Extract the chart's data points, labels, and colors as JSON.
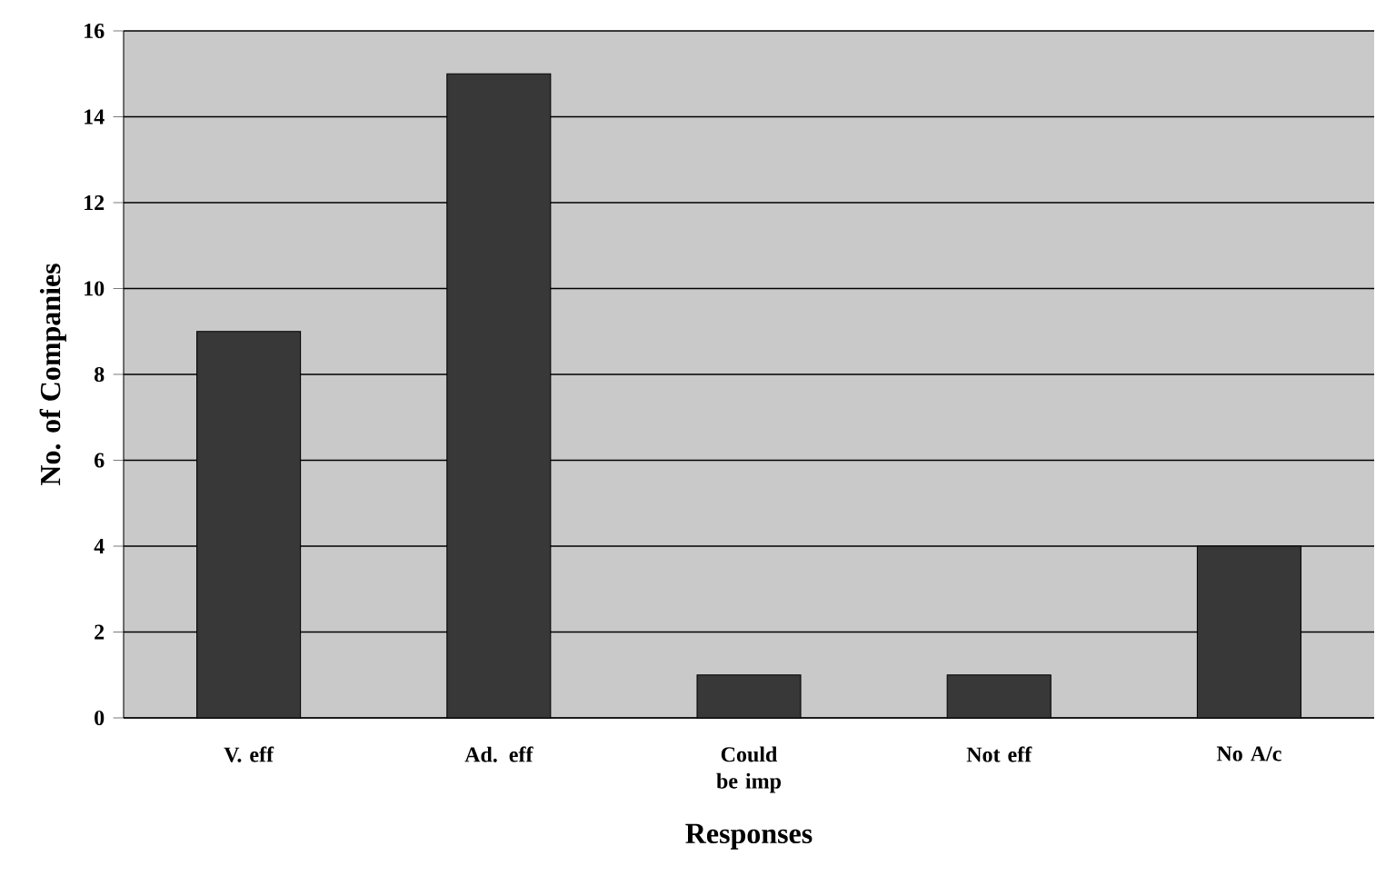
{
  "chart_data": {
    "type": "bar",
    "xlabel": "Responses",
    "ylabel": "No. of Companies",
    "categories": [
      "V. eff",
      "Ad. eff",
      "Could be imp",
      "Not eff",
      "No A/c"
    ],
    "values": [
      9,
      15,
      1,
      1,
      4
    ],
    "color": "#383838",
    "ylim": [
      0,
      16
    ],
    "yticks": [
      0,
      2,
      4,
      6,
      8,
      10,
      12,
      14,
      16
    ],
    "grid": "y"
  }
}
